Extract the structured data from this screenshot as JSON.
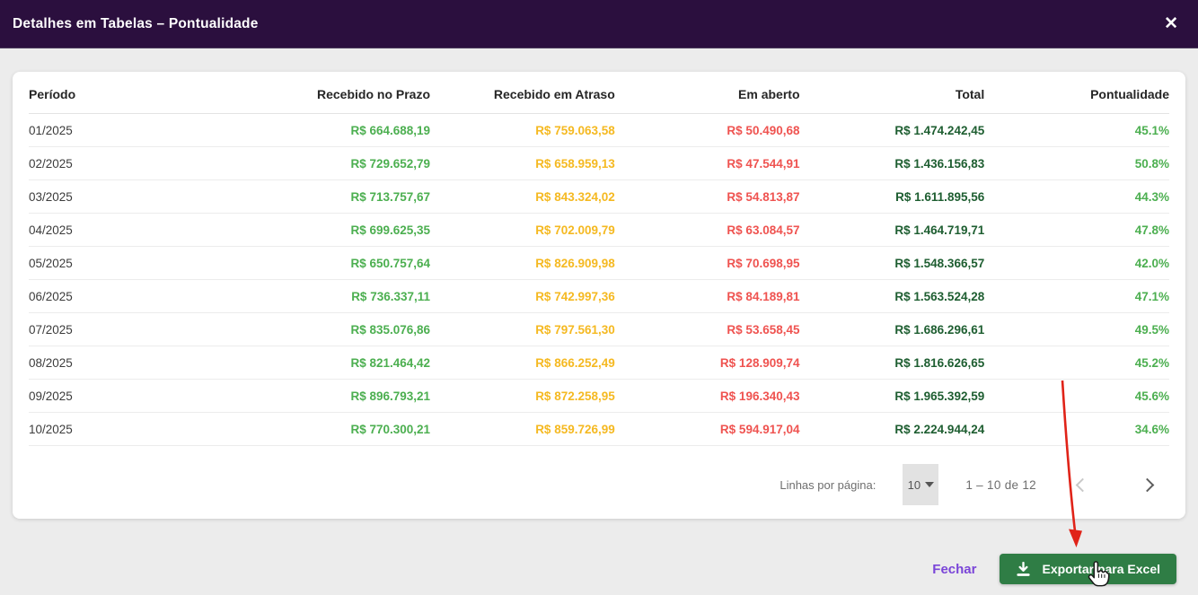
{
  "modal": {
    "title": "Detalhes em Tabelas – Pontualidade",
    "close_icon": "✕"
  },
  "table": {
    "columns": [
      "Período",
      "Recebido no Prazo",
      "Recebido em Atraso",
      "Em aberto",
      "Total",
      "Pontualidade"
    ],
    "rows": [
      {
        "periodo": "01/2025",
        "prazo": "R$ 664.688,19",
        "atraso": "R$ 759.063,58",
        "aberto": "R$ 50.490,68",
        "total": "R$ 1.474.242,45",
        "pont": "45.1%"
      },
      {
        "periodo": "02/2025",
        "prazo": "R$ 729.652,79",
        "atraso": "R$ 658.959,13",
        "aberto": "R$ 47.544,91",
        "total": "R$ 1.436.156,83",
        "pont": "50.8%"
      },
      {
        "periodo": "03/2025",
        "prazo": "R$ 713.757,67",
        "atraso": "R$ 843.324,02",
        "aberto": "R$ 54.813,87",
        "total": "R$ 1.611.895,56",
        "pont": "44.3%"
      },
      {
        "periodo": "04/2025",
        "prazo": "R$ 699.625,35",
        "atraso": "R$ 702.009,79",
        "aberto": "R$ 63.084,57",
        "total": "R$ 1.464.719,71",
        "pont": "47.8%"
      },
      {
        "periodo": "05/2025",
        "prazo": "R$ 650.757,64",
        "atraso": "R$ 826.909,98",
        "aberto": "R$ 70.698,95",
        "total": "R$ 1.548.366,57",
        "pont": "42.0%"
      },
      {
        "periodo": "06/2025",
        "prazo": "R$ 736.337,11",
        "atraso": "R$ 742.997,36",
        "aberto": "R$ 84.189,81",
        "total": "R$ 1.563.524,28",
        "pont": "47.1%"
      },
      {
        "periodo": "07/2025",
        "prazo": "R$ 835.076,86",
        "atraso": "R$ 797.561,30",
        "aberto": "R$ 53.658,45",
        "total": "R$ 1.686.296,61",
        "pont": "49.5%"
      },
      {
        "periodo": "08/2025",
        "prazo": "R$ 821.464,42",
        "atraso": "R$ 866.252,49",
        "aberto": "R$ 128.909,74",
        "total": "R$ 1.816.626,65",
        "pont": "45.2%"
      },
      {
        "periodo": "09/2025",
        "prazo": "R$ 896.793,21",
        "atraso": "R$ 872.258,95",
        "aberto": "R$ 196.340,43",
        "total": "R$ 1.965.392,59",
        "pont": "45.6%"
      },
      {
        "periodo": "10/2025",
        "prazo": "R$ 770.300,21",
        "atraso": "R$ 859.726,99",
        "aberto": "R$ 594.917,04",
        "total": "R$ 2.224.944,24",
        "pont": "34.6%"
      }
    ]
  },
  "pagination": {
    "label": "Linhas por página:",
    "page_size": "10",
    "range": "1 – 10 de 12"
  },
  "footer": {
    "close_label": "Fechar",
    "export_label": "Exportar para Excel"
  },
  "colors": {
    "header-bg": "#2B0F3E",
    "page-bg": "#ECECEC",
    "green": "#4CAF50",
    "amber": "#F5B921",
    "red": "#EF5350",
    "dark-green": "#1E5E31",
    "purple-link": "#7A45D8",
    "button-green": "#2F7D45",
    "text-dark": "#262626",
    "text-muted": "#6E6E6E",
    "arrow-red": "#E02318"
  }
}
